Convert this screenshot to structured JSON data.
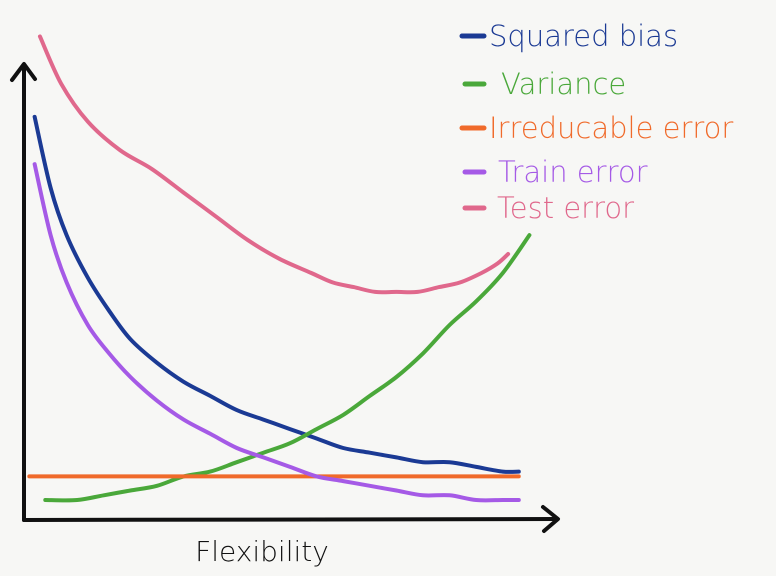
{
  "chart_data": {
    "type": "line",
    "title": "",
    "xlabel": "Flexibility",
    "ylabel": "",
    "xlim": [
      0,
      1
    ],
    "ylim": [
      0,
      1
    ],
    "grid": false,
    "legend_position": "top-right",
    "series": [
      {
        "name": "Squared bias",
        "color": "#1b3a94",
        "x": [
          0.02,
          0.05,
          0.08,
          0.12,
          0.16,
          0.2,
          0.25,
          0.3,
          0.35,
          0.4,
          0.45,
          0.5,
          0.55,
          0.6,
          0.65,
          0.7,
          0.75,
          0.8,
          0.85,
          0.9,
          0.93
        ],
        "y": [
          0.81,
          0.66,
          0.56,
          0.47,
          0.4,
          0.34,
          0.29,
          0.25,
          0.22,
          0.19,
          0.17,
          0.15,
          0.13,
          0.11,
          0.1,
          0.09,
          0.08,
          0.08,
          0.07,
          0.06,
          0.06
        ]
      },
      {
        "name": "Variance",
        "color": "#4aa83a",
        "x": [
          0.04,
          0.1,
          0.15,
          0.2,
          0.25,
          0.3,
          0.35,
          0.4,
          0.45,
          0.5,
          0.55,
          0.6,
          0.65,
          0.7,
          0.75,
          0.8,
          0.85,
          0.9,
          0.95
        ],
        "y": [
          0.0,
          0.0,
          0.01,
          0.02,
          0.03,
          0.05,
          0.06,
          0.08,
          0.1,
          0.12,
          0.15,
          0.18,
          0.22,
          0.26,
          0.31,
          0.37,
          0.42,
          0.48,
          0.56
        ]
      },
      {
        "name": "Irreducable error",
        "color": "#f06a2a",
        "x": [
          0.01,
          0.93
        ],
        "y": [
          0.05,
          0.05
        ]
      },
      {
        "name": "Train error",
        "color": "#a55ae6",
        "x": [
          0.02,
          0.05,
          0.08,
          0.12,
          0.16,
          0.2,
          0.25,
          0.3,
          0.35,
          0.4,
          0.45,
          0.5,
          0.55,
          0.6,
          0.65,
          0.7,
          0.75,
          0.8,
          0.85,
          0.9,
          0.93
        ],
        "y": [
          0.71,
          0.56,
          0.46,
          0.37,
          0.31,
          0.26,
          0.21,
          0.17,
          0.14,
          0.11,
          0.09,
          0.07,
          0.05,
          0.04,
          0.03,
          0.02,
          0.01,
          0.01,
          0.0,
          0.0,
          0.0
        ]
      },
      {
        "name": "Test error",
        "color": "#e0688c",
        "x": [
          0.03,
          0.07,
          0.12,
          0.18,
          0.24,
          0.3,
          0.36,
          0.42,
          0.48,
          0.54,
          0.58,
          0.62,
          0.66,
          0.7,
          0.74,
          0.78,
          0.82,
          0.86,
          0.89,
          0.91
        ],
        "y": [
          0.98,
          0.88,
          0.8,
          0.74,
          0.7,
          0.65,
          0.6,
          0.55,
          0.51,
          0.48,
          0.46,
          0.45,
          0.44,
          0.44,
          0.44,
          0.45,
          0.46,
          0.48,
          0.5,
          0.52
        ]
      }
    ]
  }
}
